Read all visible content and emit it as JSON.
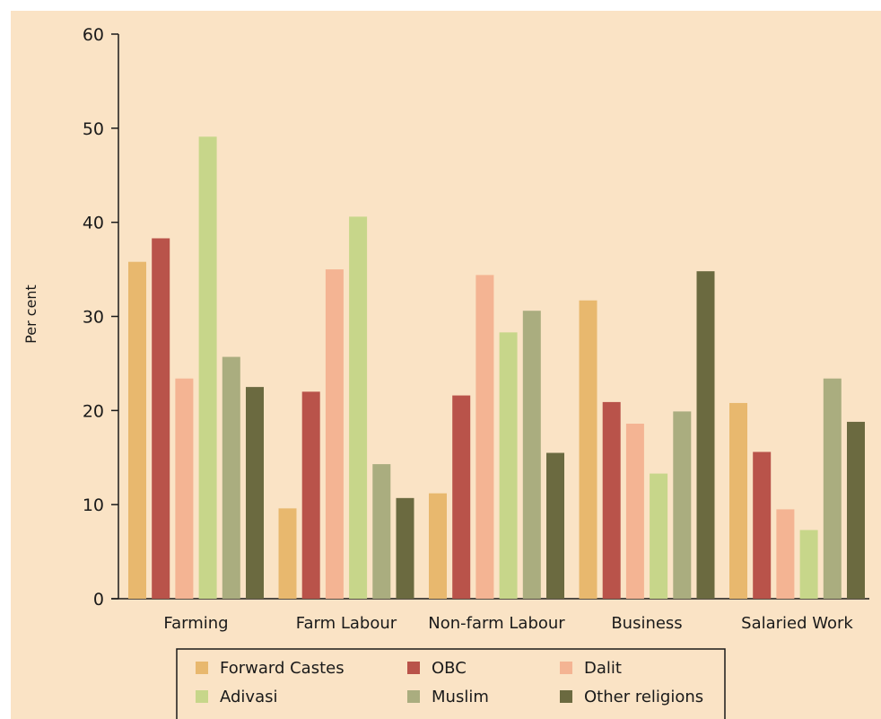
{
  "chart_data": {
    "type": "bar",
    "title": "",
    "xlabel": "",
    "ylabel": "Per cent",
    "ylim": [
      0,
      60
    ],
    "yticks": [
      0,
      10,
      20,
      30,
      40,
      50,
      60
    ],
    "categories": [
      "Farming",
      "Farm Labour",
      "Non-farm Labour",
      "Business",
      "Salaried Work"
    ],
    "series": [
      {
        "name": "Forward Castes",
        "color": "#E8B86E",
        "values": [
          35.8,
          9.6,
          11.2,
          31.7,
          20.8
        ]
      },
      {
        "name": "OBC",
        "color": "#B9534A",
        "values": [
          38.3,
          22.0,
          21.6,
          20.9,
          15.6
        ]
      },
      {
        "name": "Dalit",
        "color": "#F4B493",
        "values": [
          23.4,
          35.0,
          34.4,
          18.6,
          9.5
        ]
      },
      {
        "name": "Adivasi",
        "color": "#C7D68A",
        "values": [
          49.1,
          40.6,
          28.3,
          13.3,
          7.3
        ]
      },
      {
        "name": "Muslim",
        "color": "#AAAD7F",
        "values": [
          25.7,
          14.3,
          30.6,
          19.9,
          23.4
        ]
      },
      {
        "name": "Other religions",
        "color": "#6B6A40",
        "values": [
          22.5,
          10.7,
          15.5,
          34.8,
          18.8
        ]
      }
    ],
    "background": "#FAE3C5",
    "grid": false,
    "legend_position": "bottom"
  }
}
